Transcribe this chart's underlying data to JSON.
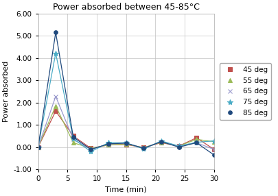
{
  "title": "Power absorbed between 45-85°C",
  "xlabel": "Time (min)",
  "ylabel": "Power absorbed",
  "xlim": [
    0,
    30
  ],
  "ylim": [
    -1.0,
    6.0
  ],
  "xticks": [
    0,
    5,
    10,
    15,
    20,
    25,
    30
  ],
  "ytick_labels": [
    "-1.00",
    "0.00",
    "1.00",
    "2.00",
    "3.00",
    "4.00",
    "5.00",
    "6.00"
  ],
  "yticks": [
    -1.0,
    0.0,
    1.0,
    2.0,
    3.0,
    4.0,
    5.0,
    6.0
  ],
  "series": {
    "45 deg": {
      "color": "#C0504D",
      "marker": "s",
      "markersize": 4,
      "x": [
        0,
        3,
        6,
        9,
        12,
        15,
        18,
        21,
        24,
        27,
        30
      ],
      "y": [
        0.0,
        1.62,
        0.5,
        -0.05,
        0.1,
        0.12,
        -0.02,
        0.2,
        0.05,
        0.42,
        -0.1
      ]
    },
    "55 deg": {
      "color": "#9BBB59",
      "marker": "^",
      "markersize": 5,
      "x": [
        0,
        3,
        6,
        9,
        12,
        15,
        18,
        21,
        24,
        27,
        30
      ],
      "y": [
        0.0,
        1.85,
        0.2,
        -0.05,
        0.1,
        0.14,
        -0.02,
        0.22,
        0.05,
        0.35,
        0.25
      ]
    },
    "65 deg": {
      "color": "#9999CC",
      "marker": "x",
      "markersize": 5,
      "x": [
        0,
        3,
        6,
        9,
        12,
        15,
        18,
        21,
        24,
        27,
        30
      ],
      "y": [
        0.0,
        2.28,
        0.35,
        -0.1,
        0.15,
        0.18,
        -0.05,
        0.25,
        0.05,
        0.2,
        -0.1
      ]
    },
    "75 deg": {
      "color": "#4BACC6",
      "marker": "*",
      "markersize": 6,
      "x": [
        0,
        3,
        6,
        9,
        12,
        15,
        18,
        21,
        24,
        27,
        30
      ],
      "y": [
        0.0,
        4.22,
        0.38,
        -0.2,
        0.2,
        0.2,
        -0.08,
        0.28,
        0.05,
        0.22,
        0.28
      ]
    },
    "85 deg": {
      "color": "#1F497D",
      "marker": "o",
      "markersize": 4,
      "x": [
        0,
        3,
        6,
        9,
        12,
        15,
        18,
        21,
        24,
        27,
        30
      ],
      "y": [
        0.0,
        5.15,
        0.45,
        -0.1,
        0.15,
        0.18,
        -0.05,
        0.25,
        0.0,
        0.2,
        -0.35
      ]
    }
  },
  "background_color": "#FFFFFF",
  "grid_color": "#C0C0C0",
  "title_fontsize": 9,
  "label_fontsize": 8,
  "tick_fontsize": 7.5,
  "legend_fontsize": 7.5
}
